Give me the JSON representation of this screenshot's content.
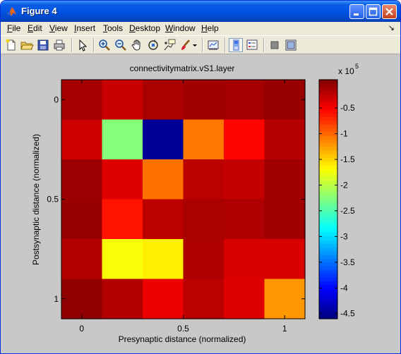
{
  "window": {
    "title": "Figure 4",
    "controls": [
      "minimize",
      "maximize",
      "close"
    ]
  },
  "menubar": {
    "items": [
      {
        "label": "File",
        "mnemonic": "F",
        "rest": "ile"
      },
      {
        "label": "Edit",
        "mnemonic": "E",
        "rest": "dit"
      },
      {
        "label": "View",
        "mnemonic": "V",
        "rest": "iew"
      },
      {
        "label": "Insert",
        "mnemonic": "I",
        "rest": "nsert"
      },
      {
        "label": "Tools",
        "mnemonic": "T",
        "rest": "ools"
      },
      {
        "label": "Desktop",
        "mnemonic": "D",
        "rest": "esktop"
      },
      {
        "label": "Window",
        "mnemonic": "W",
        "rest": "indow"
      },
      {
        "label": "Help",
        "mnemonic": "H",
        "rest": "elp"
      }
    ],
    "overflow_glyph": "↘"
  },
  "toolbar": {
    "tools": [
      "new-figure-icon",
      "open-file-icon",
      "save-icon",
      "print-icon",
      "edit-plot-arrow-icon",
      "zoom-in-icon",
      "zoom-out-icon",
      "pan-hand-icon",
      "rotate-3d-icon",
      "data-cursor-icon",
      "brush-icon",
      "brush-dropdown-icon",
      "link-plot-icon",
      "colorbar-icon",
      "legend-icon",
      "hide-plot-tools-icon",
      "show-plot-tools-icon"
    ],
    "active": [
      "colorbar-icon"
    ]
  },
  "chart_data": {
    "type": "heatmap",
    "title": "connectivitymatrix.vS1.layer",
    "xlabel": "Presynaptic distance (normalized)",
    "ylabel": "Postsynaptic distance (normalized)",
    "x_ticks": [
      "0",
      "0.5",
      "1"
    ],
    "x_tick_values": [
      0,
      0.5,
      1
    ],
    "y_ticks": [
      "0",
      "0.5",
      "1"
    ],
    "y_tick_values": [
      0,
      0.5,
      1
    ],
    "xlim": [
      -0.1,
      1.1
    ],
    "ylim": [
      -0.1,
      1.1
    ],
    "y_direction": "reversed (0 at top)",
    "rows": 6,
    "cols": 6,
    "values": [
      [
        -0.12,
        -0.28,
        -0.14,
        -0.1,
        -0.12,
        -0.06
      ],
      [
        -0.3,
        -2.25,
        -4.5,
        -1.08,
        -0.55,
        -0.2
      ],
      [
        -0.08,
        -0.38,
        -1.05,
        -0.22,
        -0.26,
        -0.1
      ],
      [
        -0.06,
        -0.62,
        -0.22,
        -0.14,
        -0.16,
        -0.1
      ],
      [
        -0.18,
        -1.72,
        -1.62,
        -0.16,
        -0.36,
        -0.36
      ],
      [
        -0.03,
        -0.18,
        -0.45,
        -0.22,
        -0.38,
        -1.22
      ]
    ],
    "colorbar": {
      "colormap": "jet",
      "clim": [
        -4.6,
        0.05
      ],
      "ticks": [
        "-0.5",
        "-1",
        "-1.5",
        "-2",
        "-2.5",
        "-3",
        "-3.5",
        "-4",
        "-4.5"
      ],
      "tick_values": [
        -0.5,
        -1,
        -1.5,
        -2,
        -2.5,
        -3,
        -3.5,
        -4,
        -4.5
      ],
      "exponent_base": "x 10",
      "exponent_power": "5"
    },
    "figure_background": "#c8c8c8"
  }
}
